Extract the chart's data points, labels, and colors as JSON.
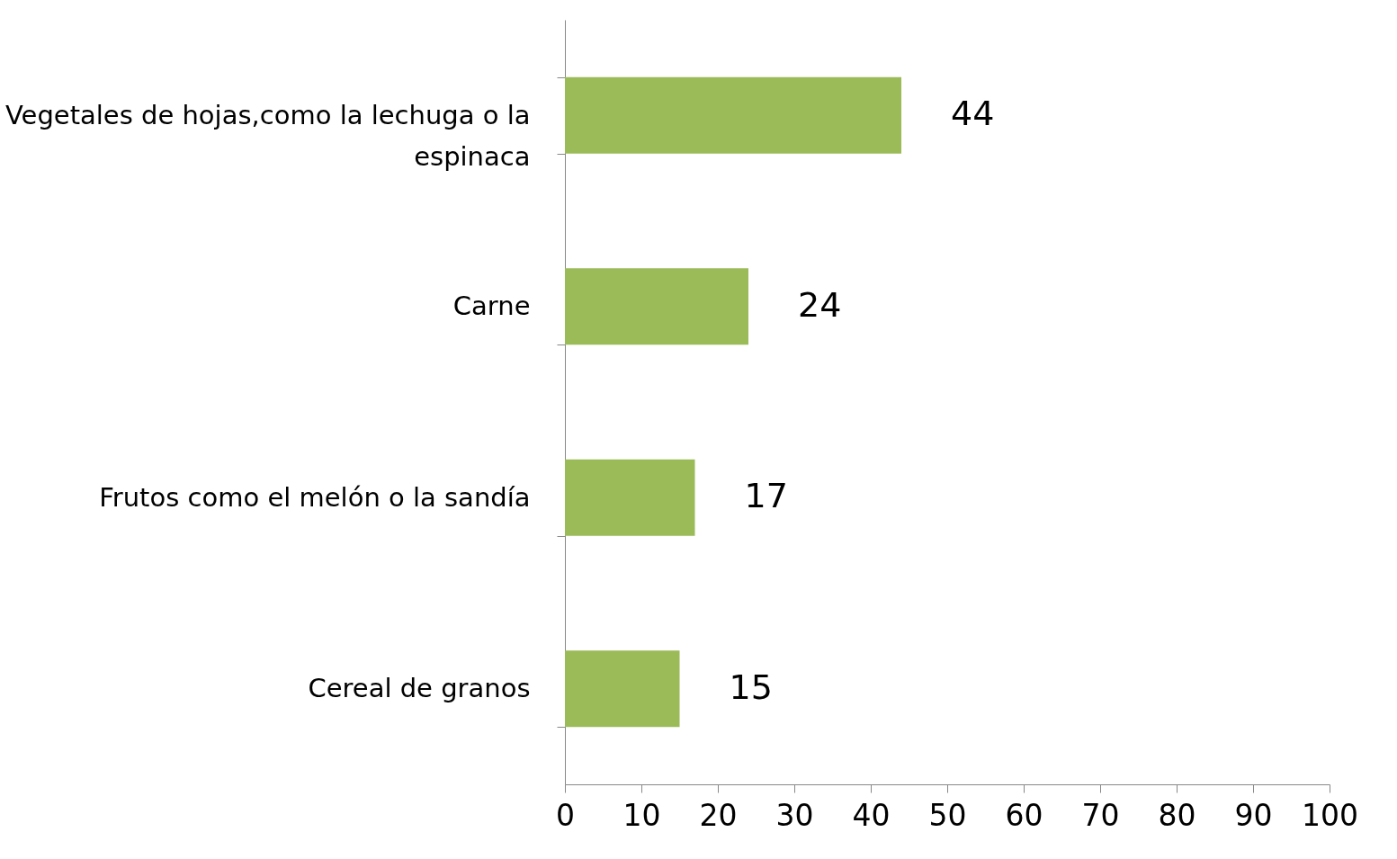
{
  "chart_data": {
    "type": "bar",
    "orientation": "horizontal",
    "categories": [
      "Vegetales de hojas,como la lechuga o la espinaca",
      "Carne",
      "Frutos como el melón o la sandía",
      "Cereal de granos"
    ],
    "values": [
      44,
      24,
      17,
      15
    ],
    "color": "#9bbb59",
    "xlim": [
      0,
      100
    ],
    "xticks": [
      0,
      10,
      20,
      30,
      40,
      50,
      60,
      70,
      80,
      90,
      100
    ],
    "data_labels": true,
    "grid": false
  }
}
